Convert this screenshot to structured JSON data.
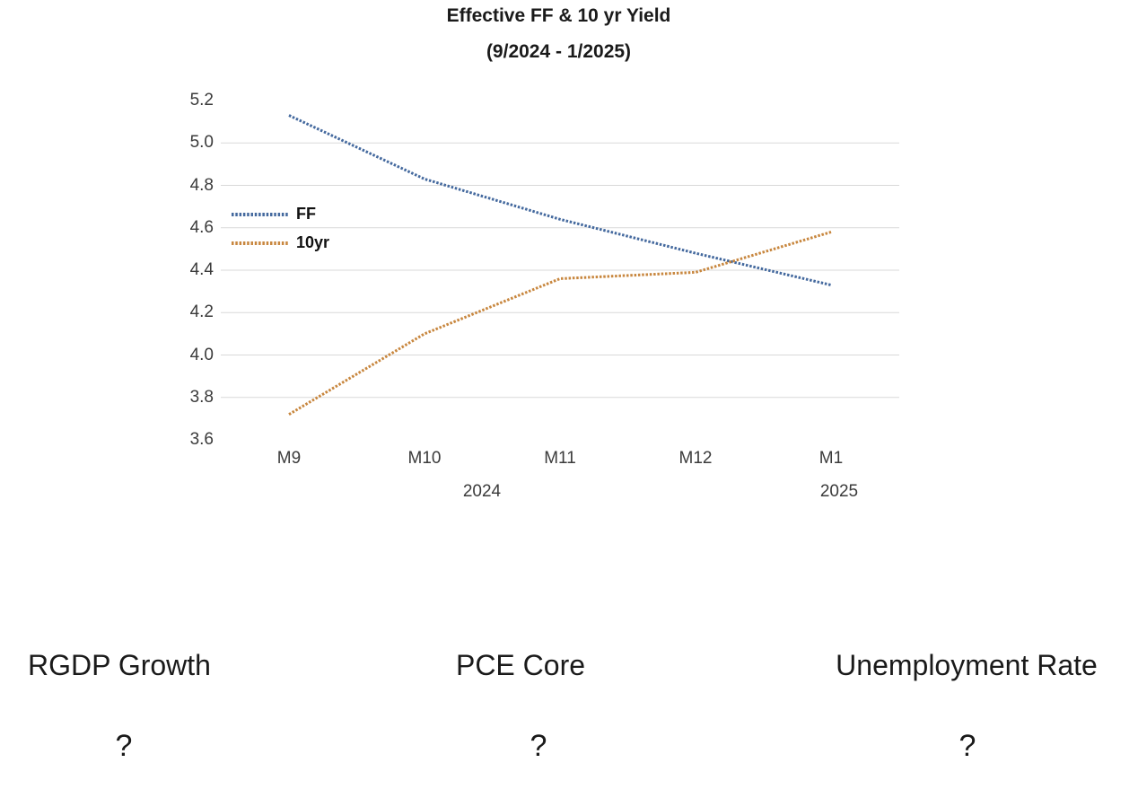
{
  "chart_data": {
    "type": "line",
    "title": "Effective FF & 10 yr Yield",
    "subtitle": "(9/2024 - 1/2025)",
    "categories": [
      "M9",
      "M10",
      "M11",
      "M12",
      "M1"
    ],
    "year_labels": [
      "2024",
      "2025"
    ],
    "series": [
      {
        "name": "FF",
        "color": "#44699E",
        "values": [
          5.13,
          4.83,
          4.64,
          4.48,
          4.33
        ]
      },
      {
        "name": "10yr",
        "color": "#C8873F",
        "values": [
          3.72,
          4.1,
          4.36,
          4.39,
          4.58
        ]
      }
    ],
    "y_ticks": [
      "5.2",
      "5.0",
      "4.8",
      "4.6",
      "4.4",
      "4.2",
      "4.0",
      "3.8",
      "3.6"
    ],
    "ylim": [
      3.6,
      5.2
    ],
    "grid": true,
    "gridline_color": "#D9D9D9",
    "legend_position": "inside-left",
    "line_style": "square-dot"
  },
  "panels": [
    {
      "label": "RGDP Growth",
      "value": "?"
    },
    {
      "label": "PCE Core",
      "value": "?"
    },
    {
      "label": "Unemployment Rate",
      "value": "?"
    }
  ]
}
